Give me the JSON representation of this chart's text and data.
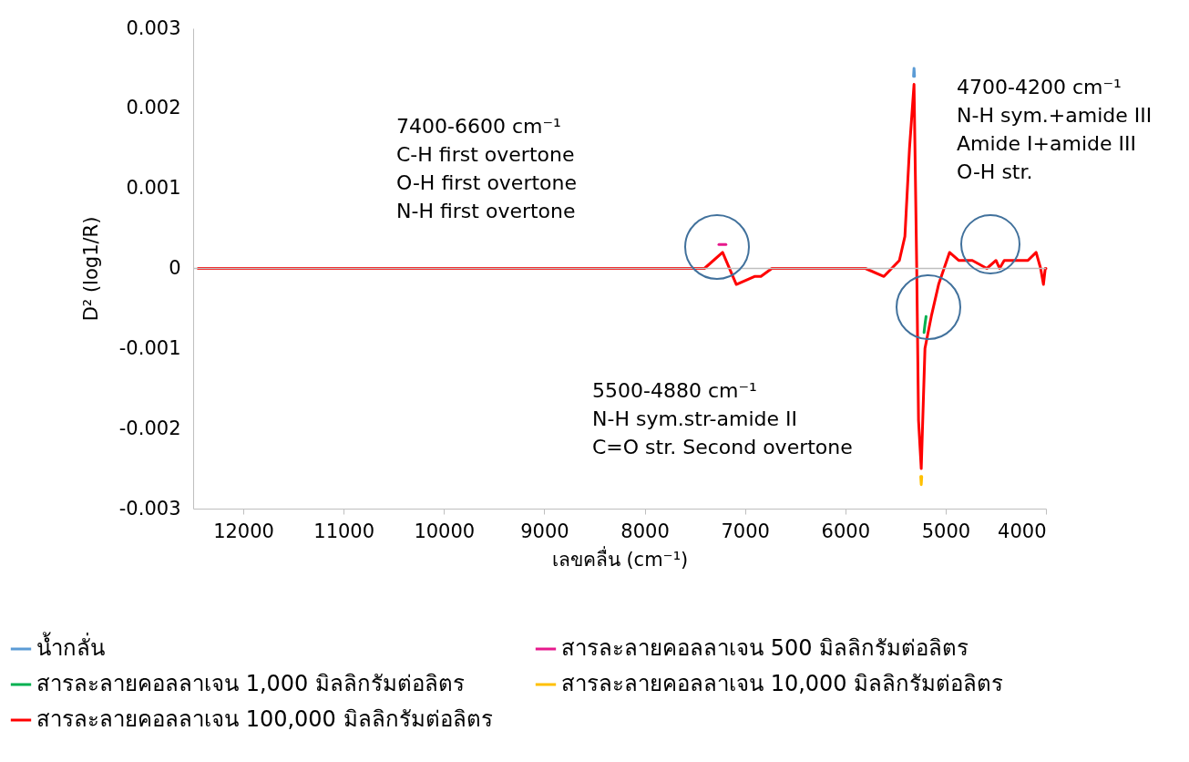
{
  "chart_data": {
    "type": "line",
    "xlabel": "เลขคลื่น (cm⁻¹)",
    "ylabel": "D² (log1/R)",
    "series": [
      {
        "name": "น้ำกลั่น",
        "color": "#5b9bd5",
        "x": [
          5320,
          5315,
          5310
        ],
        "values": [
          0.0024,
          0.0025,
          0.0024
        ]
      },
      {
        "name": "สารละลายคอลลาเจน 500 มิลลิกรัมต่อลิตร",
        "color": "#e6198c",
        "x": [
          7260,
          7223,
          7190
        ],
        "values": [
          0.0003,
          0.0003,
          0.0003
        ]
      },
      {
        "name": "สารละลายคอลลาเจน 1,000 มิลลิกรัมต่อลิตร",
        "color": "#00b050",
        "x": [
          5215,
          5206,
          5195
        ],
        "values": [
          -0.0008,
          -0.0007,
          -0.0006
        ]
      },
      {
        "name": "สารละลายคอลลาเจน 10,000 มิลลิกรัมต่อลิตร",
        "color": "#ffc000",
        "x": [
          5248,
          5243,
          5238
        ],
        "values": [
          -0.0026,
          -0.0027,
          -0.0026
        ]
      },
      {
        "name": "สารละลายคอลลาเจน 100,000 มิลลิกรัมต่อลิตร",
        "color": "#ff0000",
        "x": [
          12450,
          10500,
          7600,
          7404,
          7223,
          7086,
          6905,
          6841,
          6732,
          5800,
          5615,
          5461,
          5406,
          5360,
          5315,
          5288,
          5270,
          5243,
          5206,
          5143,
          5070,
          4961,
          4870,
          4734,
          4589,
          4498,
          4462,
          4416,
          4253,
          4180,
          4098,
          4053,
          4025,
          4007,
          4000
        ],
        "values": [
          0,
          0,
          0,
          0,
          0.0002,
          -0.0002,
          -0.0001,
          -0.0001,
          0,
          0,
          -0.0001,
          0.0001,
          0.0004,
          0.0015,
          0.0023,
          0,
          -0.0019,
          -0.0025,
          -0.001,
          -0.0006,
          -0.0002,
          0.0002,
          0.0001,
          0.0001,
          0,
          0.0001,
          0,
          0.0001,
          0.0001,
          0.0001,
          0.0002,
          0,
          -0.0002,
          0,
          0
        ]
      }
    ],
    "xlim": [
      12500,
      4000
    ],
    "xticks": [
      12000,
      11000,
      10000,
      9000,
      8000,
      7000,
      6000,
      5000,
      4000
    ],
    "ylim": [
      -0.003,
      0.003
    ],
    "yticks": [
      -0.003,
      -0.002,
      -0.001,
      0,
      0.001,
      0.002,
      0.003
    ],
    "ref_lines": [
      {
        "axis": "y",
        "value": 0,
        "color": "#bfbfbf"
      }
    ],
    "annotations": [
      "7400-6600 cm⁻¹\nC-H first overtone\nO-H first overtone\nN-H first overtone",
      "5500-4880 cm⁻¹\nN-H sym.str-amide II\nC=O str. Second overtone",
      "4700-4200 cm⁻¹\nN-H sym.+amide III\nAmide I+amide III\nO-H str."
    ],
    "grid": false,
    "legend": "bottom",
    "marker": "none",
    "line_style": "solid"
  }
}
